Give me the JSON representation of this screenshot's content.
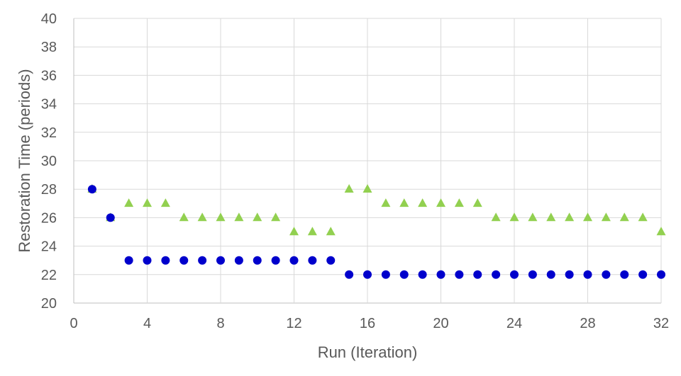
{
  "chart_data": {
    "type": "scatter",
    "title": "",
    "xlabel": "Run (Iteration)",
    "ylabel": "Restoration Time (periods)",
    "xlim": [
      0,
      32
    ],
    "ylim": [
      20,
      40
    ],
    "xticks": [
      0,
      4,
      8,
      12,
      16,
      20,
      24,
      28,
      32
    ],
    "yticks": [
      20,
      22,
      24,
      26,
      28,
      30,
      32,
      34,
      36,
      38,
      40
    ],
    "grid": true,
    "legend": "none",
    "series": [
      {
        "color": "#92D050",
        "marker": "triangle",
        "x": [
          1,
          2,
          3,
          4,
          5,
          6,
          7,
          8,
          9,
          10,
          11,
          12,
          13,
          14,
          15,
          16,
          17,
          18,
          19,
          20,
          21,
          22,
          23,
          24,
          25,
          26,
          27,
          28,
          29,
          30,
          31,
          32
        ],
        "y": [
          28,
          26,
          27,
          27,
          27,
          26,
          26,
          26,
          26,
          26,
          26,
          25,
          25,
          25,
          28,
          28,
          27,
          27,
          27,
          27,
          27,
          27,
          26,
          26,
          26,
          26,
          26,
          26,
          26,
          26,
          26,
          25
        ]
      },
      {
        "color": "#0000CC",
        "marker": "circle",
        "x": [
          1,
          2,
          3,
          4,
          5,
          6,
          7,
          8,
          9,
          10,
          11,
          12,
          13,
          14,
          15,
          16,
          17,
          18,
          19,
          20,
          21,
          22,
          23,
          24,
          25,
          26,
          27,
          28,
          29,
          30,
          31,
          32
        ],
        "y": [
          28,
          26,
          23,
          23,
          23,
          23,
          23,
          23,
          23,
          23,
          23,
          23,
          23,
          23,
          22,
          22,
          22,
          22,
          22,
          22,
          22,
          22,
          22,
          22,
          22,
          22,
          22,
          22,
          22,
          22,
          22,
          22
        ]
      }
    ]
  }
}
